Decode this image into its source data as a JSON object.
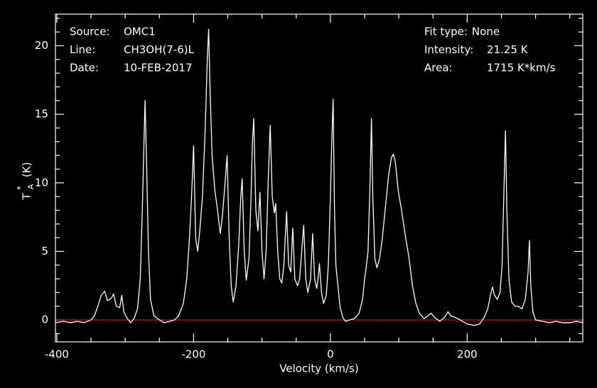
{
  "chart_data": {
    "type": "line",
    "xlabel": "Velocity (km/s)",
    "ylabel": {
      "base": "T",
      "sub": "A",
      "sup": "*",
      "unit": "(K)"
    },
    "annotations_left": [
      {
        "label": "Source:",
        "value": "OMC1"
      },
      {
        "label": "Line:",
        "value": "CH3OH(7-6)L"
      },
      {
        "label": "Date:",
        "value": "10-FEB-2017"
      }
    ],
    "annotations_right": [
      {
        "label": "Fit type:",
        "value": "None"
      },
      {
        "label": "Intensity:",
        "value": "21.25 K"
      },
      {
        "label": "Area:",
        "value": "1715 K*km/s"
      }
    ],
    "xlim": [
      -402,
      369
    ],
    "ylim": [
      -1.6,
      22.3
    ],
    "xticks": [
      -400,
      -200,
      0,
      200
    ],
    "yticks": [
      0,
      5,
      10,
      15,
      20
    ],
    "xminorticks": [
      -350,
      -300,
      -250,
      -150,
      -100,
      -50,
      50,
      100,
      150,
      250,
      300,
      350
    ],
    "yminorticks": [
      -1,
      1,
      2,
      3,
      4,
      6,
      7,
      8,
      9,
      11,
      12,
      13,
      14,
      16,
      17,
      18,
      19,
      21,
      22
    ],
    "hline": 0,
    "hline_color": "#d0202a",
    "color": "#ffffff",
    "x": [
      -402,
      -390,
      -380,
      -370,
      -360,
      -350,
      -345,
      -340,
      -335,
      -330,
      -326,
      -320,
      -317,
      -313,
      -308,
      -305,
      -302,
      -297,
      -292,
      -287,
      -282,
      -278,
      -275,
      -272,
      -271,
      -269,
      -266,
      -263,
      -258,
      -250,
      -243,
      -235,
      -228,
      -222,
      -215,
      -210,
      -206,
      -203,
      -200,
      -197,
      -194,
      -191,
      -187,
      -183,
      -180,
      -178,
      -176,
      -173,
      -169,
      -165,
      -161,
      -158,
      -154,
      -151,
      -148,
      -145,
      -142,
      -138,
      -134,
      -131,
      -129,
      -126,
      -123,
      -119,
      -116,
      -114,
      -112,
      -109,
      -106,
      -103,
      -100,
      -97,
      -94,
      -91,
      -88,
      -85,
      -82,
      -80,
      -77,
      -74,
      -71,
      -68,
      -66,
      -64,
      -61,
      -58,
      -55,
      -52,
      -48,
      -45,
      -42,
      -39,
      -36,
      -33,
      -29,
      -26,
      -23,
      -20,
      -18,
      -16,
      -13,
      -10,
      -6,
      -3,
      0,
      2,
      4,
      6,
      8,
      11,
      14,
      18,
      22,
      28,
      35,
      42,
      47,
      50,
      52,
      55,
      58,
      60,
      62,
      65,
      68,
      72,
      76,
      80,
      85,
      89,
      92,
      95,
      99,
      104,
      110,
      115,
      120,
      125,
      130,
      137,
      143,
      147,
      152,
      160,
      167,
      172,
      176,
      182,
      190,
      200,
      210,
      218,
      225,
      230,
      234,
      237,
      240,
      244,
      248,
      251,
      254,
      256,
      258,
      261,
      265,
      270,
      275,
      280,
      285,
      289,
      291,
      293,
      296,
      300,
      310,
      320,
      330,
      340,
      350,
      360,
      369
    ],
    "values": [
      -0.2,
      -0.1,
      -0.2,
      -0.1,
      -0.2,
      0,
      0.3,
      1.0,
      1.8,
      2.1,
      1.4,
      1.6,
      1.9,
      1.0,
      0.9,
      1.8,
      0.6,
      0.1,
      -0.2,
      0.1,
      0.8,
      3,
      8,
      14,
      16.0,
      12,
      5,
      1.5,
      0.3,
      0,
      -0.2,
      -0.1,
      0,
      0.3,
      1.2,
      3,
      6,
      9,
      12.7,
      6,
      5,
      6.5,
      9,
      14,
      19,
      21.2,
      17,
      12,
      9.5,
      8,
      6.3,
      7.5,
      10,
      12.0,
      6,
      2.5,
      1.3,
      2.5,
      5.5,
      9,
      10.3,
      5,
      2.9,
      4.5,
      9,
      13,
      14.7,
      8,
      6.5,
      9.3,
      5,
      3.0,
      5,
      10,
      14.2,
      9,
      7.8,
      8.5,
      5,
      3,
      2.7,
      4,
      6,
      7.9,
      4,
      3.5,
      6.7,
      3,
      2.5,
      3,
      5,
      6.9,
      3,
      2,
      3,
      6.3,
      3,
      2.3,
      3,
      4.1,
      2,
      1.2,
      1.8,
      4,
      9,
      13,
      16.1,
      8,
      4,
      2.5,
      1,
      0.2,
      -0.1,
      0,
      0.1,
      0.5,
      1.5,
      3,
      3.7,
      5,
      10,
      14.7,
      9,
      4.5,
      3.8,
      4.5,
      6,
      8,
      10.5,
      11.8,
      12.1,
      11.5,
      9.5,
      8,
      6,
      4.5,
      2.5,
      1.2,
      0.5,
      0.1,
      0.3,
      0.5,
      0.2,
      -0.1,
      0.2,
      0.6,
      0.3,
      0.2,
      0,
      -0.3,
      -0.4,
      -0.3,
      0.2,
      0.8,
      1.8,
      2.4,
      1.8,
      1.5,
      2,
      4,
      10,
      13.8,
      8,
      3,
      1.3,
      1,
      1,
      0.8,
      1.5,
      3.5,
      5.8,
      2.5,
      0.6,
      0,
      -0.1,
      -0.2,
      -0.1,
      -0.2,
      -0.2,
      -0.1,
      -0.2
    ]
  }
}
